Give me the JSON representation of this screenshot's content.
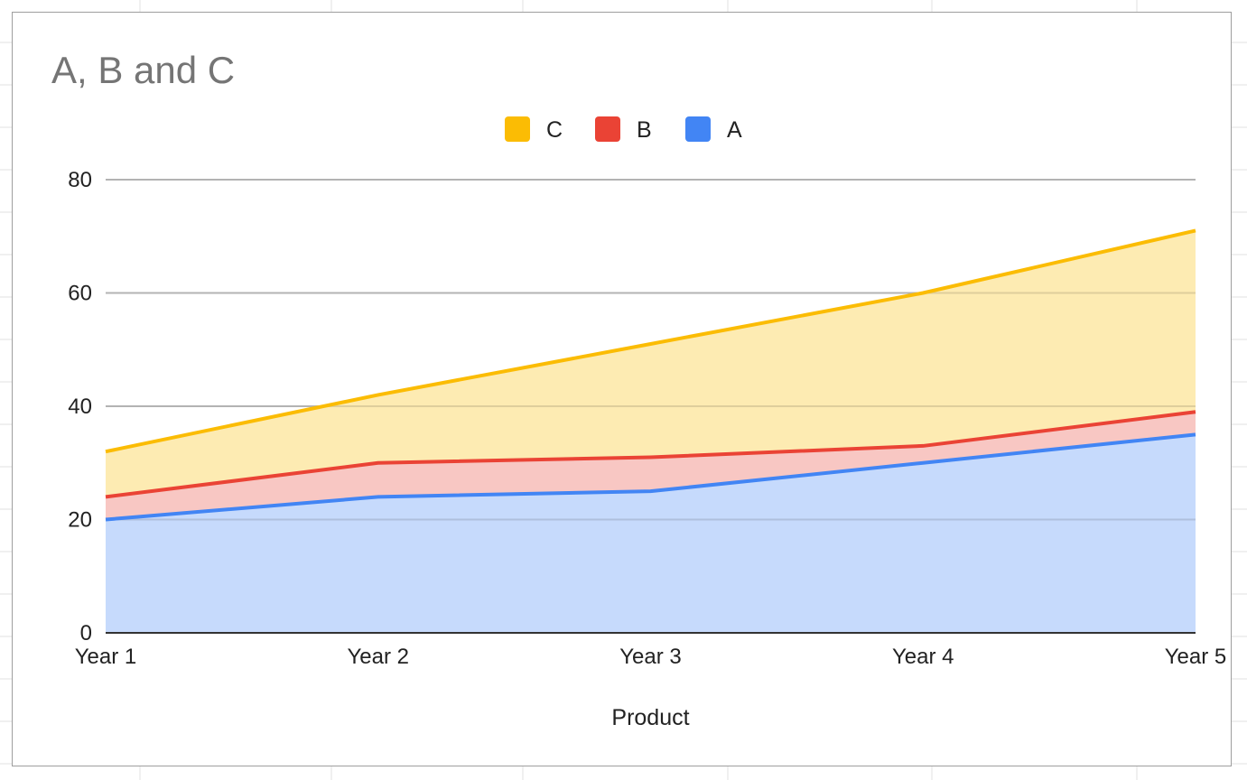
{
  "chart_data": {
    "type": "area",
    "stacked": true,
    "title": "A, B and C",
    "xlabel": "Product",
    "ylabel": "",
    "categories": [
      "Year 1",
      "Year 2",
      "Year 3",
      "Year 4",
      "Year 5"
    ],
    "ylim": [
      0,
      80
    ],
    "yticks": [
      "0",
      "20",
      "40",
      "60",
      "80"
    ],
    "grid": true,
    "legend_position": "top",
    "legend_order": [
      "C",
      "B",
      "A"
    ],
    "series": [
      {
        "name": "A",
        "values": [
          20,
          24,
          25,
          30,
          35
        ],
        "color": "#4285f4",
        "fill": "#c6dafc"
      },
      {
        "name": "B",
        "values": [
          4,
          6,
          6,
          3,
          4
        ],
        "color": "#ea4335",
        "fill": "#f8c7c3"
      },
      {
        "name": "C",
        "values": [
          8,
          12,
          20,
          27,
          32
        ],
        "color": "#fbbc04",
        "fill": "#fdebb2"
      }
    ]
  }
}
